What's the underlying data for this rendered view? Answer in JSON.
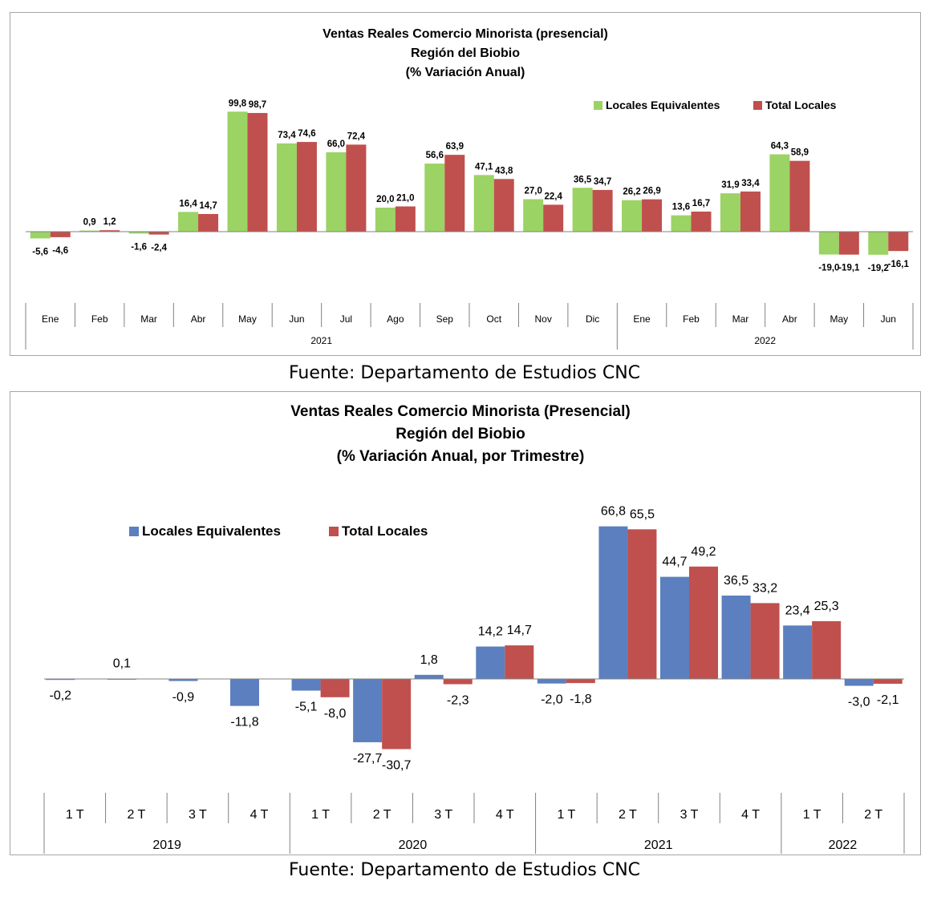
{
  "chart_data": [
    {
      "type": "bar",
      "title": [
        "Ventas Reales Comercio Minorista (presencial)",
        "Región del Biobio",
        "(% Variación Anual)"
      ],
      "legend_position": "top-right",
      "grid": false,
      "categories": [
        "Ene",
        "Feb",
        "Mar",
        "Abr",
        "May",
        "Jun",
        "Jul",
        "Ago",
        "Sep",
        "Oct",
        "Nov",
        "Dic",
        "Ene",
        "Feb",
        "Mar",
        "Abr",
        "May",
        "Jun"
      ],
      "groups": [
        {
          "label": "2021",
          "count": 12
        },
        {
          "label": "2022",
          "count": 6
        }
      ],
      "ylim": [
        -40,
        110
      ],
      "series": [
        {
          "name": "Locales Equivalentes",
          "color": "#9bd364",
          "values": [
            -5.6,
            0.9,
            -1.6,
            16.4,
            99.8,
            73.4,
            66.0,
            20.0,
            56.6,
            47.1,
            27.0,
            36.5,
            26.2,
            13.6,
            31.9,
            64.3,
            -19.0,
            -19.2
          ],
          "labels": [
            "-5,6",
            "0,9",
            "-1,6",
            "16,4",
            "99,8",
            "73,4",
            "66,0",
            "20,0",
            "56,6",
            "47,1",
            "27,0",
            "36,5",
            "26,2",
            "13,6",
            "31,9",
            "64,3",
            "-19,0",
            "-19,2"
          ]
        },
        {
          "name": "Total Locales",
          "color": "#c0504d",
          "values": [
            -4.6,
            1.2,
            -2.4,
            14.7,
            98.7,
            74.6,
            72.4,
            21.0,
            63.9,
            43.8,
            22.4,
            34.7,
            26.9,
            16.7,
            33.4,
            58.9,
            -19.1,
            -16.1
          ],
          "labels": [
            "-4,6",
            "1,2",
            "-2,4",
            "14,7",
            "98,7",
            "74,6",
            "72,4",
            "21,0",
            "63,9",
            "43,8",
            "22,4",
            "34,7",
            "26,9",
            "16,7",
            "33,4",
            "58,9",
            "-19,1",
            "-16,1"
          ]
        }
      ]
    },
    {
      "type": "bar",
      "title": [
        "Ventas Reales Comercio Minorista (Presencial)",
        "Región del Biobio",
        "(% Variación Anual, por Trimestre)"
      ],
      "legend_position": "top-left",
      "grid": false,
      "categories": [
        "1 T",
        "2 T",
        "3 T",
        "4 T",
        "1 T",
        "2 T",
        "3 T",
        "4 T",
        "1 T",
        "2 T",
        "3 T",
        "4 T",
        "1 T",
        "2 T"
      ],
      "groups": [
        {
          "label": "2019",
          "count": 4
        },
        {
          "label": "2020",
          "count": 4
        },
        {
          "label": "2021",
          "count": 4
        },
        {
          "label": "2022",
          "count": 2
        }
      ],
      "ylim": [
        -40,
        75
      ],
      "series": [
        {
          "name": "Locales Equivalentes",
          "color": "#5b7fbf",
          "values": [
            -0.2,
            0.1,
            -0.9,
            -11.8,
            -5.1,
            -27.7,
            1.8,
            14.2,
            -2.0,
            66.8,
            44.7,
            36.5,
            23.4,
            -3.0
          ],
          "labels": [
            "-0,2",
            "0,1",
            "-0,9",
            "-11,8",
            "-5,1",
            "-27,7",
            "1,8",
            "14,2",
            "-2,0",
            "66,8",
            "44,7",
            "36,5",
            "23,4",
            "-3,0"
          ]
        },
        {
          "name": "Total Locales",
          "color": "#c0504d",
          "values": [
            null,
            null,
            null,
            null,
            -8.0,
            -30.7,
            -2.3,
            14.7,
            -1.8,
            65.5,
            49.2,
            33.2,
            25.3,
            -2.1
          ],
          "labels": [
            "",
            "",
            "",
            "",
            "-8,0",
            "-30,7",
            "-2,3",
            "14,7",
            "-1,8",
            "65,5",
            "49,2",
            "33,2",
            "25,3",
            "-2,1"
          ]
        }
      ]
    }
  ],
  "sources": [
    "Fuente: Departamento de Estudios CNC",
    "Fuente: Departamento de Estudios CNC"
  ]
}
